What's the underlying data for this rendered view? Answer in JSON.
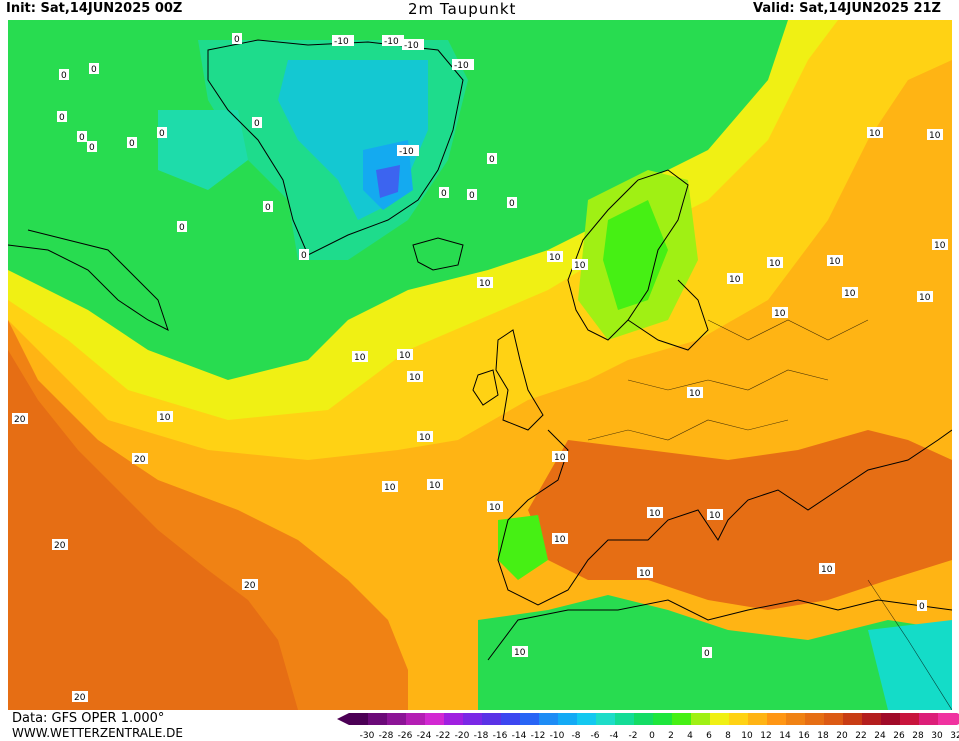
{
  "header": {
    "init": "Init: Sat,14JUN2025 00Z",
    "title": "2m Taupunkt",
    "valid": "Valid: Sat,14JUN2025 21Z"
  },
  "footer": {
    "data_source": "Data: GFS OPER 1.000°",
    "website": "WWW.WETTERZENTRALE.DE"
  },
  "legend": {
    "values": [
      "-30",
      "-28",
      "-26",
      "-24",
      "-22",
      "-20",
      "-18",
      "-16",
      "-14",
      "-12",
      "-10",
      "-8",
      "-6",
      "-4",
      "-2",
      "0",
      "2",
      "4",
      "6",
      "8",
      "10",
      "12",
      "14",
      "16",
      "18",
      "20",
      "22",
      "24",
      "26",
      "28",
      "30",
      "32"
    ],
    "colors": [
      "#4b0055",
      "#6b0a78",
      "#8c1496",
      "#b41eb4",
      "#d228d2",
      "#a020e0",
      "#7a28e6",
      "#5a32e6",
      "#3c46f0",
      "#2864f5",
      "#1e8cf5",
      "#14aaf5",
      "#14c8f0",
      "#1edcc8",
      "#14dc96",
      "#14dc64",
      "#1ee63c",
      "#46f014",
      "#a0f014",
      "#f0f014",
      "#ffd214",
      "#ffb414",
      "#ff9614",
      "#f08214",
      "#e66e14",
      "#dc5a14",
      "#c83c14",
      "#b41e1e",
      "#a00a28",
      "#c8143c",
      "#dc1e78",
      "#f032a0"
    ]
  },
  "contour_labels": [
    {
      "text": "0"
    },
    {
      "text": "0"
    },
    {
      "text": "0"
    },
    {
      "text": "0"
    },
    {
      "text": "0"
    },
    {
      "text": "0"
    },
    {
      "text": "0"
    },
    {
      "text": "0"
    },
    {
      "text": "-10"
    },
    {
      "text": "-10"
    },
    {
      "text": "-10"
    },
    {
      "text": "-10"
    },
    {
      "text": "-10"
    },
    {
      "text": "0"
    },
    {
      "text": "0"
    },
    {
      "text": "0"
    },
    {
      "text": "0"
    },
    {
      "text": "0"
    },
    {
      "text": "0"
    },
    {
      "text": "0"
    },
    {
      "text": "0"
    },
    {
      "text": "10"
    },
    {
      "text": "10"
    },
    {
      "text": "10"
    },
    {
      "text": "10"
    },
    {
      "text": "10"
    },
    {
      "text": "10"
    },
    {
      "text": "10"
    },
    {
      "text": "10"
    },
    {
      "text": "10"
    },
    {
      "text": "10"
    },
    {
      "text": "10"
    },
    {
      "text": "10"
    },
    {
      "text": "10"
    },
    {
      "text": "10"
    },
    {
      "text": "10"
    },
    {
      "text": "10"
    },
    {
      "text": "10"
    },
    {
      "text": "10"
    },
    {
      "text": "10"
    },
    {
      "text": "10"
    },
    {
      "text": "10"
    },
    {
      "text": "20"
    },
    {
      "text": "20"
    },
    {
      "text": "20"
    },
    {
      "text": "20"
    },
    {
      "text": "20"
    },
    {
      "text": "10"
    },
    {
      "text": "10"
    },
    {
      "text": "10"
    },
    {
      "text": "10"
    },
    {
      "text": "10"
    },
    {
      "text": "10"
    },
    {
      "text": "10"
    },
    {
      "text": "0"
    },
    {
      "text": "0"
    },
    {
      "text": "0"
    }
  ]
}
